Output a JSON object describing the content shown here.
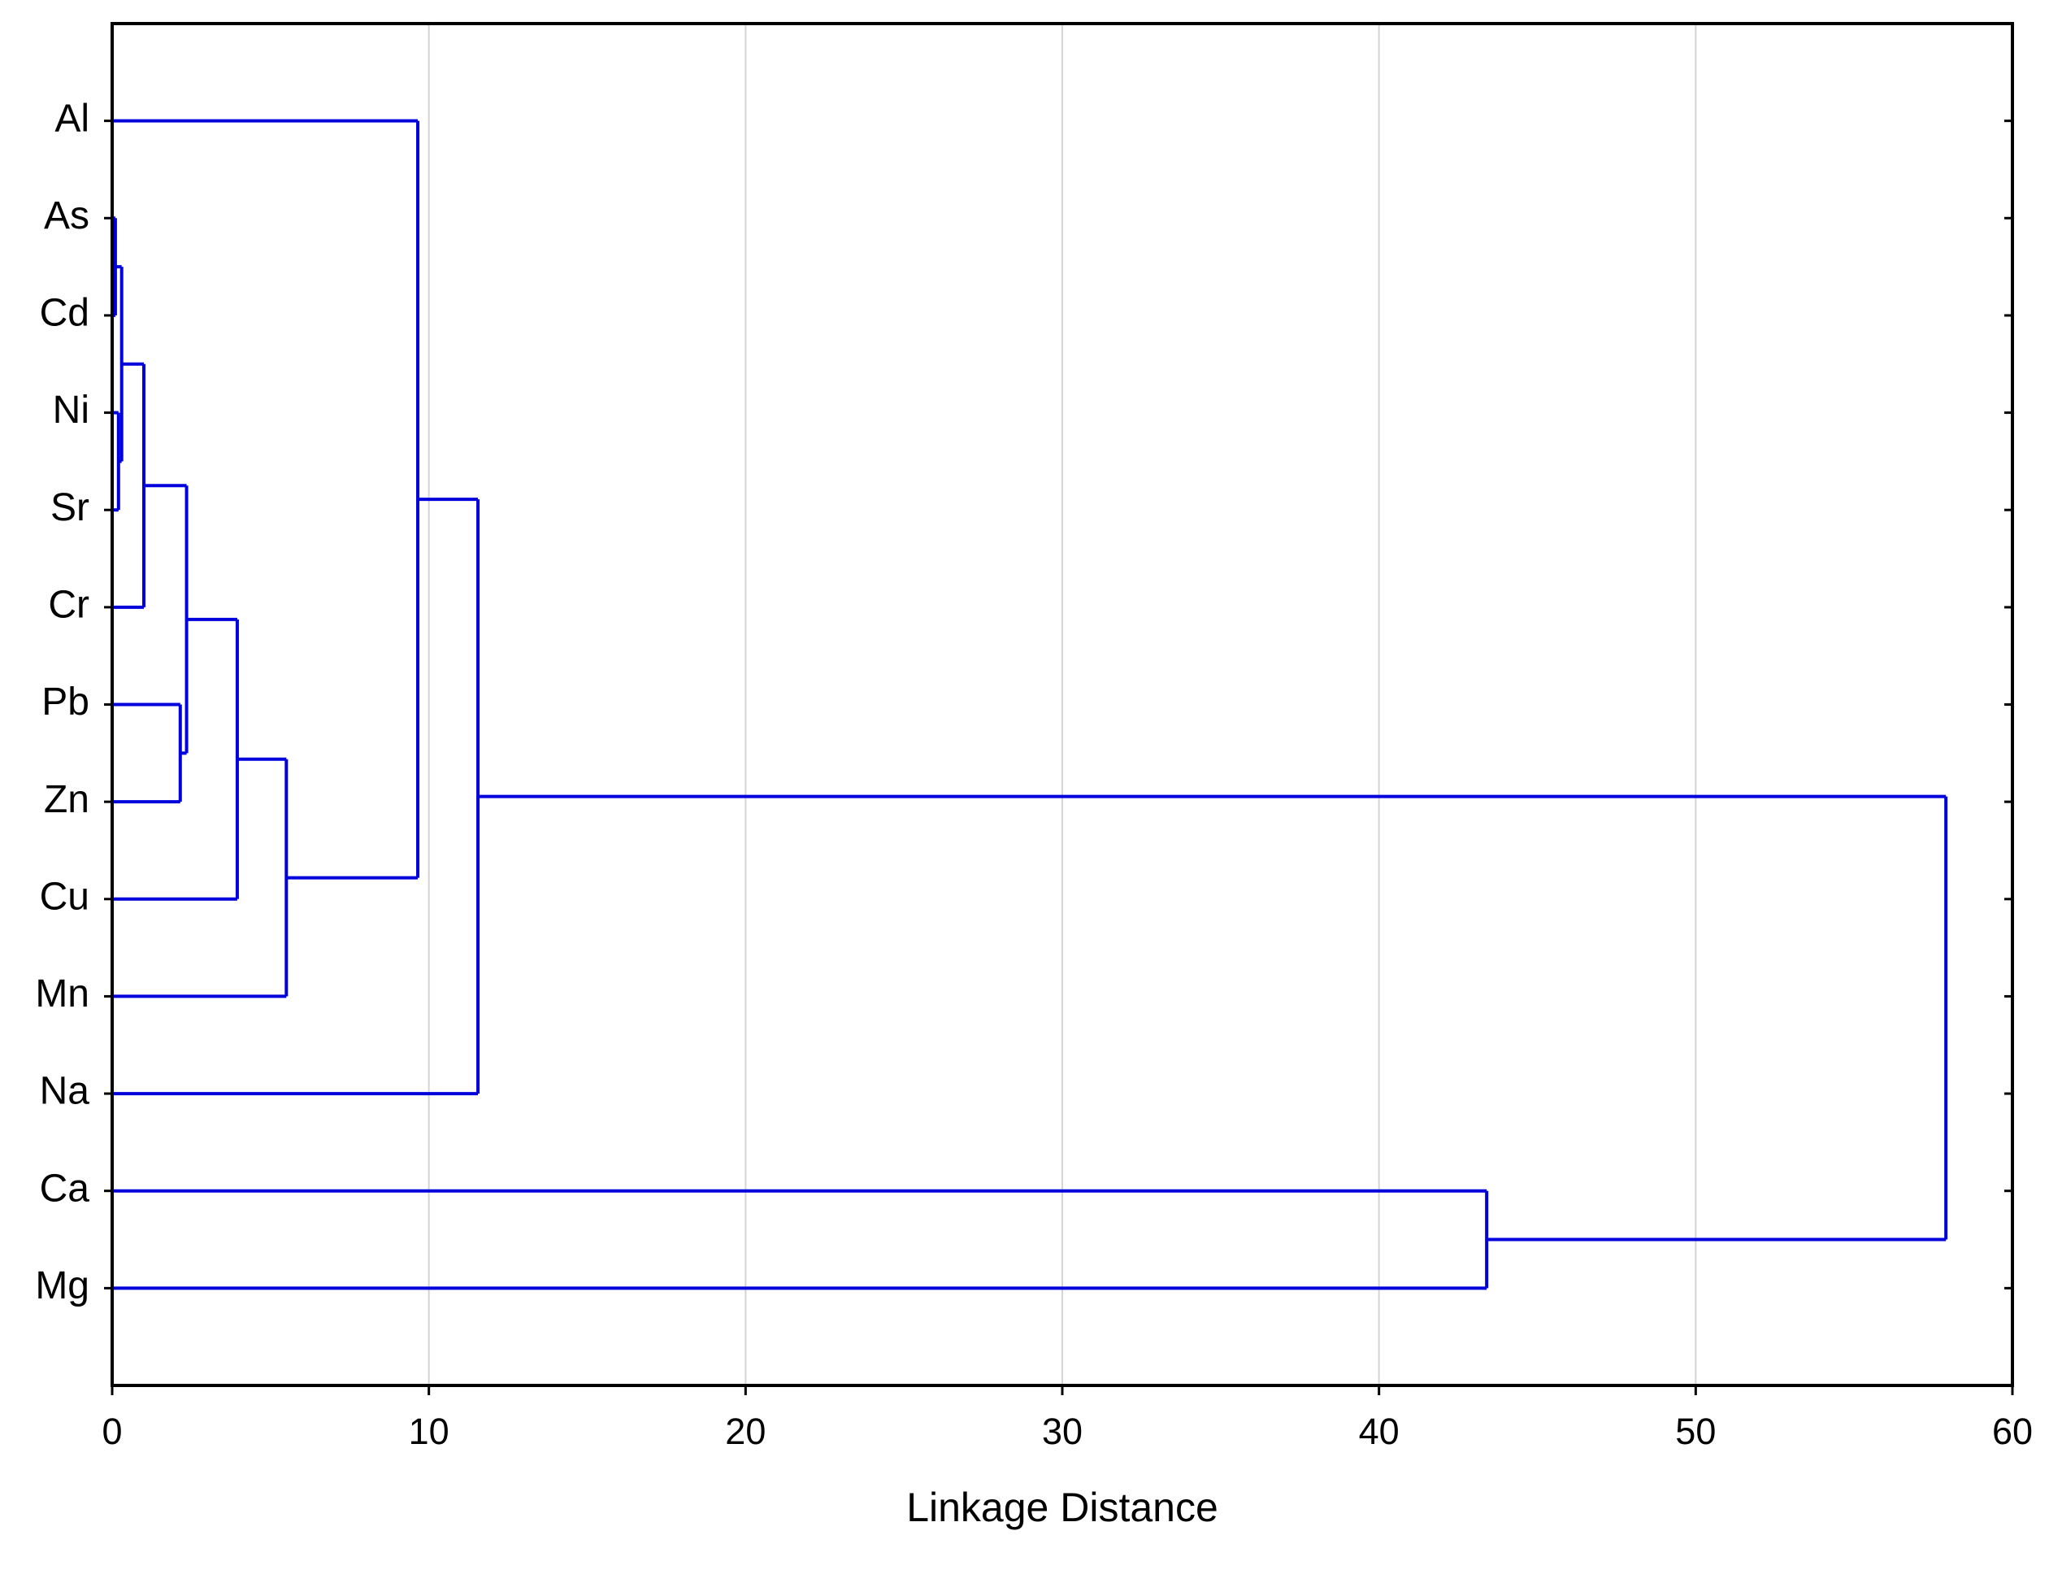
{
  "chart_data": {
    "type": "dendrogram",
    "x_label": "Linkage Distance",
    "categories": [
      "Al",
      "As",
      "Cd",
      "Ni",
      "Sr",
      "Cr",
      "Pb",
      "Zn",
      "Cu",
      "Mn",
      "Na",
      "Ca",
      "Mg"
    ],
    "merges": [
      {
        "children": [
          1,
          2
        ],
        "distance": 0.1
      },
      {
        "children": [
          3,
          4
        ],
        "distance": 0.2
      },
      {
        "children": [
          13,
          14
        ],
        "distance": 0.3
      },
      {
        "children": [
          15,
          5
        ],
        "distance": 1.0
      },
      {
        "children": [
          6,
          7
        ],
        "distance": 2.15
      },
      {
        "children": [
          16,
          17
        ],
        "distance": 2.35
      },
      {
        "children": [
          18,
          8
        ],
        "distance": 3.95
      },
      {
        "children": [
          19,
          9
        ],
        "distance": 5.5
      },
      {
        "children": [
          0,
          20
        ],
        "distance": 9.65
      },
      {
        "children": [
          21,
          10
        ],
        "distance": 11.55
      },
      {
        "children": [
          11,
          12
        ],
        "distance": 43.4
      },
      {
        "children": [
          22,
          23
        ],
        "distance": 57.9
      }
    ],
    "color": "#0000dd",
    "xlim": [
      0,
      60
    ],
    "xticks": [
      0,
      10,
      20,
      30,
      40,
      50,
      60
    ],
    "grid": true
  }
}
